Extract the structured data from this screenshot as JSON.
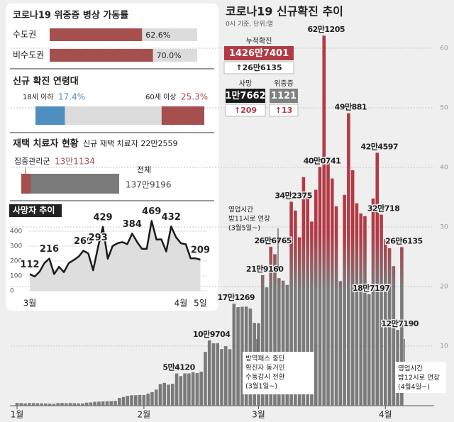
{
  "chart_data": [
    {
      "type": "bar",
      "title": "코로나19 신규확진 추이",
      "subtitle": "0시 기준, 단위:명",
      "categories": [
        "1월",
        null,
        null,
        null,
        null,
        null,
        null,
        null,
        null,
        null,
        null,
        null,
        null,
        null,
        null,
        null,
        null,
        null,
        null,
        null,
        null,
        null,
        null,
        null,
        null,
        null,
        null,
        null,
        null,
        null,
        null,
        "2월",
        null,
        null,
        null,
        null,
        null,
        null,
        null,
        null,
        null,
        null,
        null,
        null,
        null,
        null,
        null,
        null,
        null,
        null,
        null,
        null,
        null,
        null,
        null,
        null,
        null,
        null,
        null,
        "3월",
        null,
        null,
        null,
        null,
        null,
        null,
        null,
        null,
        null,
        null,
        null,
        null,
        null,
        null,
        null,
        null,
        null,
        null,
        null,
        null,
        null,
        null,
        null,
        null,
        null,
        null,
        null,
        null,
        null,
        null,
        "4월",
        null,
        null,
        null,
        null
      ],
      "values": [
        0.47,
        0.43,
        0.37,
        0.44,
        0.43,
        0.41,
        0.39,
        0.38,
        0.33,
        0.31,
        0.44,
        0.45,
        0.42,
        0.45,
        0.41,
        0.39,
        0.38,
        0.51,
        0.54,
        0.65,
        0.67,
        0.71,
        0.76,
        0.76,
        0.8,
        1.3,
        1.46,
        1.65,
        1.75,
        1.76,
        1.8,
        1.8,
        2.03,
        2.27,
        2.7,
        3.63,
        3.83,
        3.53,
        3.69,
        5.412,
        4.97,
        5.42,
        5.41,
        5.62,
        5.47,
        5.71,
        9.04,
        10.9704,
        10.47,
        10.48,
        9.51,
        9.99,
        9.49,
        17.1269,
        16.54,
        16.6,
        16.63,
        16.3,
        13.9,
        13.84,
        21.916,
        19.86,
        26.6765,
        25.43,
        21.41,
        20.99,
        20.27,
        34.2375,
        32.75,
        28.27,
        38.35,
        35.01,
        30.91,
        36.24,
        40.0741,
        62.1205,
        40.72,
        38.13,
        33.46,
        20.92,
        35.39,
        49.0881,
        39.52,
        33.99,
        32.27,
        31.82,
        18.7197,
        34.78,
        42.4597,
        32.0718,
        28.0,
        26.43,
        23.42,
        12.719,
        26.6135
      ],
      "value_labels": [
        null,
        null,
        null,
        null,
        null,
        null,
        null,
        null,
        null,
        null,
        null,
        null,
        null,
        null,
        null,
        null,
        null,
        null,
        null,
        null,
        null,
        null,
        null,
        null,
        null,
        null,
        null,
        null,
        null,
        null,
        null,
        null,
        null,
        null,
        null,
        null,
        null,
        null,
        null,
        "5만4120",
        null,
        null,
        null,
        null,
        null,
        null,
        null,
        "10만9704",
        null,
        null,
        null,
        null,
        null,
        "17만1269",
        null,
        null,
        null,
        null,
        null,
        null,
        "21만9160",
        null,
        "26만6765",
        null,
        null,
        null,
        null,
        "34만2375",
        null,
        null,
        null,
        null,
        null,
        null,
        "40만0741",
        "62만1205",
        null,
        null,
        null,
        null,
        null,
        "49만881",
        null,
        null,
        null,
        null,
        "18만7197",
        null,
        "42만4597",
        "32만718",
        null,
        null,
        null,
        "12만7190",
        "26만6135"
      ],
      "ylim": [
        0,
        65
      ],
      "yticks": [
        10,
        20,
        30,
        40,
        50,
        60
      ],
      "grid": true,
      "color": "#7a7a7a",
      "highlight_color": "#b23a44",
      "stats": [
        {
          "label": "누적확진",
          "value": "1426만7401",
          "change": "↑26만6135"
        },
        {
          "label": "사망",
          "value": "1만7662",
          "change": "↑209"
        },
        {
          "label": "위중증",
          "value": "1121",
          "change": "↑13"
        }
      ],
      "annotations": [
        {
          "lines": [
            "영업시간",
            "밤11시로 연장",
            "(3월5일~)"
          ]
        },
        {
          "lines": [
            "방역패스 중단",
            "확진자 동거인",
            "수동감시 전환",
            "(3월1일~)"
          ]
        },
        {
          "lines": [
            "영업시간",
            "밤12시로 연장",
            "(4월4일~)"
          ]
        }
      ]
    },
    {
      "type": "hbar",
      "title": "코로나19 위중증 병상 가동률",
      "categories": [
        "수도권",
        "비수도권"
      ],
      "values": [
        62.6,
        70.0
      ],
      "value_labels": [
        "62.6%",
        "70.0%"
      ],
      "xlim": [
        0,
        100
      ],
      "color": "#a5504f"
    },
    {
      "type": "split",
      "title": "신규 확진 연령대",
      "categories": [
        "18세 이하",
        "60세 이상"
      ],
      "values": [
        17.4,
        25.3
      ],
      "value_labels": [
        "17.4%",
        "25.3%"
      ],
      "xlim": [
        0,
        100
      ],
      "colors": [
        "#4f8fc0",
        "#a5504f"
      ]
    },
    {
      "type": "part",
      "title": "재택 치료자 현황",
      "subtitle": "신규 재택 치료자 22만2559",
      "categories": [
        "집중관리군",
        "전체"
      ],
      "values": [
        131134,
        1379196
      ],
      "value_labels": [
        "13만1134",
        "137만9196"
      ],
      "colors": [
        "#a5504f",
        "#7a7a7a"
      ]
    },
    {
      "type": "line",
      "title": "사망자 추이",
      "categories": [
        "3월",
        null,
        null,
        null,
        null,
        null,
        null,
        null,
        null,
        null,
        null,
        null,
        null,
        null,
        null,
        null,
        null,
        null,
        null,
        null,
        null,
        null,
        null,
        null,
        null,
        null,
        null,
        null,
        null,
        null,
        null,
        "4월",
        null,
        null,
        null,
        "5일"
      ],
      "values": [
        112,
        96,
        128,
        186,
        216,
        112,
        161,
        125,
        186,
        206,
        229,
        269,
        251,
        138,
        293,
        429,
        215,
        301,
        319,
        327,
        313,
        384,
        329,
        282,
        282,
        469,
        344,
        345,
        264,
        432,
        360,
        319,
        313,
        218,
        218,
        209
      ],
      "value_labels": [
        "112",
        null,
        null,
        null,
        "216",
        null,
        null,
        null,
        null,
        null,
        null,
        "269",
        null,
        null,
        "293",
        "429",
        null,
        null,
        null,
        null,
        null,
        "384",
        null,
        null,
        null,
        "469",
        null,
        null,
        null,
        "432",
        null,
        null,
        null,
        null,
        null,
        "209"
      ],
      "ylim": [
        0,
        500
      ],
      "yticks": [
        0,
        100,
        200,
        300,
        400
      ],
      "color": "#1a1a1a"
    }
  ]
}
